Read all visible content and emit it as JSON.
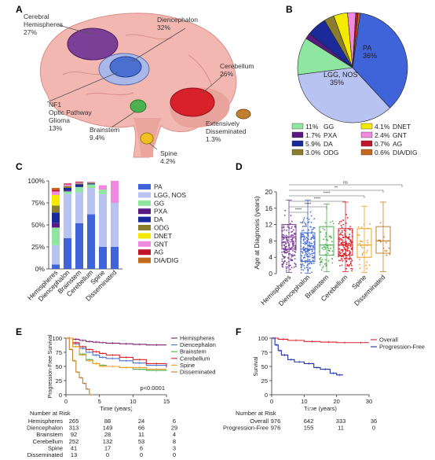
{
  "panels": {
    "a": "A",
    "b": "B",
    "c": "C",
    "d": "D",
    "e": "E",
    "f": "F"
  },
  "panelA": {
    "labels": [
      {
        "name": "Cerebral Hemispheres",
        "lines": [
          "Cerebral",
          "Hemispheres",
          "27%"
        ],
        "color": "#7b3f98"
      },
      {
        "name": "Diencephalon",
        "lines": [
          "Diencephalon",
          "32%"
        ],
        "color": "#4a6fd1"
      },
      {
        "name": "Cerebellum",
        "lines": [
          "Cerebellum",
          "26%"
        ],
        "color": "#d9212b"
      },
      {
        "name": "NF1 Optic Pathway Glioma",
        "lines": [
          "NF1",
          "Optic Pathway",
          "Glioma",
          "13%"
        ],
        "color": "#a9b8e8"
      },
      {
        "name": "Brainstem",
        "lines": [
          "Brainstem",
          "9.4%"
        ],
        "color": "#4caf50"
      },
      {
        "name": "Extensively Disseminated",
        "lines": [
          "Extensively",
          "Disseminated",
          "1.3%"
        ],
        "color": "#c0802f"
      },
      {
        "name": "Spine",
        "lines": [
          "Spine",
          "4.2%"
        ],
        "color": "#f0c020"
      }
    ]
  },
  "chart_data": [
    {
      "panel": "B",
      "type": "pie",
      "slices": [
        {
          "label": "PA",
          "value": 36,
          "color": "#3f63d8"
        },
        {
          "label": "LGG, NOS",
          "value": 35,
          "color": "#b9c3f2"
        },
        {
          "label": "GG",
          "value": 11,
          "color": "#8ee6a0"
        },
        {
          "label": "PXA",
          "value": 1.7,
          "color": "#5a1a82"
        },
        {
          "label": "DA",
          "value": 5.9,
          "color": "#1a2a9a"
        },
        {
          "label": "ODG",
          "value": 3.0,
          "color": "#8a7d2e"
        },
        {
          "label": "DNET",
          "value": 4.1,
          "color": "#f4ea00"
        },
        {
          "label": "GNT",
          "value": 2.4,
          "color": "#f08ae0"
        },
        {
          "label": "AG",
          "value": 0.7,
          "color": "#c0162c"
        },
        {
          "label": "DIA/DIG",
          "value": 0.6,
          "color": "#c26a1c"
        }
      ],
      "slice_labels": [
        {
          "text": "PA",
          "pct": "36%"
        },
        {
          "text": "LGG, NOS",
          "pct": "35%"
        }
      ],
      "legend": [
        {
          "pct": "11%",
          "label": "GG",
          "color": "#8ee6a0"
        },
        {
          "pct": "4.1%",
          "label": "DNET",
          "color": "#f4ea00"
        },
        {
          "pct": "1.7%",
          "label": "PXA",
          "color": "#5a1a82"
        },
        {
          "pct": "2.4%",
          "label": "GNT",
          "color": "#f08ae0"
        },
        {
          "pct": "5.9%",
          "label": "DA",
          "color": "#1a2a9a"
        },
        {
          "pct": "0.7%",
          "label": "AG",
          "color": "#c0162c"
        },
        {
          "pct": "3.0%",
          "label": "ODG",
          "color": "#8a7d2e"
        },
        {
          "pct": "0.6%",
          "label": "DIA/DIG",
          "color": "#c26a1c"
        }
      ]
    },
    {
      "panel": "C",
      "type": "bar",
      "stacked": true,
      "categories": [
        "Hemispheres",
        "Diencephalon",
        "Brainstem",
        "Cerebellum",
        "Spine",
        "Disseminated"
      ],
      "ylim": [
        0,
        100
      ],
      "yticks": [
        "0%",
        "25%",
        "50%",
        "75%",
        "100%"
      ],
      "series": [
        {
          "name": "PA",
          "color": "#3f63d8",
          "values": [
            5,
            35,
            52,
            62,
            25,
            25
          ]
        },
        {
          "name": "LGG, NOS",
          "color": "#b9c3f2",
          "values": [
            22,
            50,
            35,
            30,
            60,
            50
          ]
        },
        {
          "name": "GG",
          "color": "#8ee6a0",
          "values": [
            20,
            3,
            6,
            4,
            5,
            0
          ]
        },
        {
          "name": "PXA",
          "color": "#5a1a82",
          "values": [
            5,
            1,
            0,
            0,
            0,
            0
          ]
        },
        {
          "name": "DA",
          "color": "#1a2a9a",
          "values": [
            12,
            3,
            3,
            1,
            0,
            0
          ]
        },
        {
          "name": "ODG",
          "color": "#8a7d2e",
          "values": [
            8,
            2,
            1,
            1,
            0,
            0
          ]
        },
        {
          "name": "DNET",
          "color": "#f4ea00",
          "values": [
            12,
            0,
            0,
            0,
            0,
            0
          ]
        },
        {
          "name": "GNT",
          "color": "#f08ae0",
          "values": [
            4,
            2,
            1,
            1,
            5,
            25
          ]
        },
        {
          "name": "AG",
          "color": "#c0162c",
          "values": [
            2,
            1,
            1,
            0,
            0,
            0
          ]
        },
        {
          "name": "DIA/DIG",
          "color": "#c26a1c",
          "values": [
            2,
            0,
            0,
            0,
            0,
            0
          ]
        }
      ]
    },
    {
      "panel": "D",
      "type": "scatter",
      "ylabel": "Age at Diagnosis (years)",
      "ylim": [
        0,
        20
      ],
      "yticks": [
        0,
        4,
        8,
        12,
        16,
        20
      ],
      "categories": [
        "Hemispheres",
        "Diencephalon",
        "Brainstem",
        "Cerebellum",
        "Spine",
        "Disseminated"
      ],
      "groups": [
        {
          "name": "Hemispheres",
          "color": "#7b3f98",
          "q1": 6,
          "median": 9,
          "q3": 12,
          "min": 0.3,
          "max": 18,
          "n": 180
        },
        {
          "name": "Diencephalon",
          "color": "#4a6fd1",
          "q1": 3,
          "median": 6,
          "q3": 10,
          "min": 0.1,
          "max": 18,
          "n": 200
        },
        {
          "name": "Brainstem",
          "color": "#4caf50",
          "q1": 4.5,
          "median": 7,
          "q3": 11.5,
          "min": 0.5,
          "max": 17,
          "n": 60
        },
        {
          "name": "Cerebellum",
          "color": "#d9212b",
          "q1": 4.5,
          "median": 7,
          "q3": 11,
          "min": 0.5,
          "max": 17.5,
          "n": 170
        },
        {
          "name": "Spine",
          "color": "#f0a020",
          "q1": 4,
          "median": 7,
          "q3": 11,
          "min": 0.3,
          "max": 16.5,
          "n": 30
        },
        {
          "name": "Disseminated",
          "color": "#c0802f",
          "q1": 5,
          "median": 8,
          "q3": 11.5,
          "min": 0.5,
          "max": 17.5,
          "n": 12
        }
      ],
      "significance": [
        "****",
        "****",
        "****",
        "****",
        "**",
        "ns"
      ]
    },
    {
      "panel": "E",
      "type": "line",
      "ylabel": "Progression-Free Survival",
      "xlabel": "Time (years)",
      "xlim": [
        0,
        15
      ],
      "ylim": [
        0,
        100
      ],
      "xticks": [
        0,
        5,
        10,
        15
      ],
      "yticks": [
        0,
        25,
        50,
        75,
        100
      ],
      "annotation": "p<0.0001",
      "series": [
        {
          "name": "Hemispheres",
          "color": "#7b2070",
          "x": [
            0,
            1,
            2,
            3,
            4,
            5,
            6,
            8,
            10,
            12,
            15
          ],
          "y": [
            100,
            98,
            96,
            94,
            93,
            92,
            91,
            90,
            89,
            88,
            88
          ]
        },
        {
          "name": "Diencephalon",
          "color": "#4a6fd1",
          "x": [
            0,
            1,
            2,
            3,
            4,
            5,
            6,
            8,
            10,
            12,
            15
          ],
          "y": [
            100,
            90,
            82,
            75,
            70,
            66,
            64,
            60,
            56,
            52,
            48
          ]
        },
        {
          "name": "Brainstem",
          "color": "#4caf50",
          "x": [
            0,
            1,
            2,
            3,
            4,
            5,
            6,
            8,
            10,
            12,
            15
          ],
          "y": [
            100,
            85,
            72,
            62,
            55,
            52,
            50,
            48,
            45,
            43,
            42
          ]
        },
        {
          "name": "Cerebellum",
          "color": "#d9212b",
          "x": [
            0,
            1,
            2,
            3,
            4,
            5,
            6,
            8,
            10,
            12,
            15
          ],
          "y": [
            100,
            92,
            85,
            80,
            76,
            73,
            70,
            66,
            62,
            55,
            50
          ]
        },
        {
          "name": "Spine",
          "color": "#f0a020",
          "x": [
            0,
            1,
            2,
            3,
            4,
            5,
            6,
            8,
            10,
            12,
            15
          ],
          "y": [
            100,
            85,
            70,
            60,
            55,
            50,
            50,
            48,
            48,
            45,
            45
          ]
        },
        {
          "name": "Disseminated",
          "color": "#c0802f",
          "x": [
            0,
            0.5,
            1,
            1.5,
            2,
            2.5,
            3,
            3.5,
            4
          ],
          "y": [
            100,
            80,
            60,
            40,
            30,
            20,
            10,
            0,
            0
          ]
        }
      ],
      "risk_header": "Number at Risk",
      "risk_x": [
        "0",
        "5",
        "10",
        "15"
      ],
      "risk_rows": [
        {
          "name": "Hemispheres",
          "values": [
            "265",
            "88",
            "24",
            "6"
          ]
        },
        {
          "name": "Diencephalon",
          "values": [
            "313",
            "149",
            "66",
            "29"
          ]
        },
        {
          "name": "Brainstem",
          "values": [
            "92",
            "28",
            "11",
            "4"
          ]
        },
        {
          "name": "Cerebellum",
          "values": [
            "252",
            "132",
            "53",
            "8"
          ]
        },
        {
          "name": "Spine",
          "values": [
            "41",
            "17",
            "6",
            "3"
          ]
        },
        {
          "name": "Disseminated",
          "values": [
            "13",
            "0",
            "0",
            "0"
          ]
        }
      ]
    },
    {
      "panel": "F",
      "type": "line",
      "ylabel": "Survival",
      "xlabel": "Time (years)",
      "xlim": [
        0,
        30
      ],
      "ylim": [
        0,
        100
      ],
      "xticks": [
        0,
        10,
        20,
        30
      ],
      "yticks": [
        0,
        25,
        50,
        75,
        100
      ],
      "series": [
        {
          "name": "Overall",
          "color": "#d9212b",
          "x": [
            0,
            2,
            5,
            10,
            15,
            20,
            25,
            30
          ],
          "y": [
            100,
            98,
            96,
            94,
            93,
            92,
            92,
            92
          ]
        },
        {
          "name": "Progression-Free",
          "color": "#2030a0",
          "x": [
            0,
            1,
            2,
            3,
            5,
            7,
            10,
            13,
            15,
            18,
            20,
            22
          ],
          "y": [
            100,
            88,
            78,
            70,
            62,
            58,
            55,
            48,
            45,
            38,
            35,
            35
          ]
        }
      ],
      "risk_header": "Number at Risk",
      "risk_x": [
        "0",
        "10",
        "20",
        "30"
      ],
      "risk_rows": [
        {
          "name": "Overall",
          "values": [
            "976",
            "642",
            "333",
            "36"
          ]
        },
        {
          "name": "Progression-Free",
          "values": [
            "976",
            "155",
            "11",
            "0"
          ]
        }
      ]
    }
  ]
}
